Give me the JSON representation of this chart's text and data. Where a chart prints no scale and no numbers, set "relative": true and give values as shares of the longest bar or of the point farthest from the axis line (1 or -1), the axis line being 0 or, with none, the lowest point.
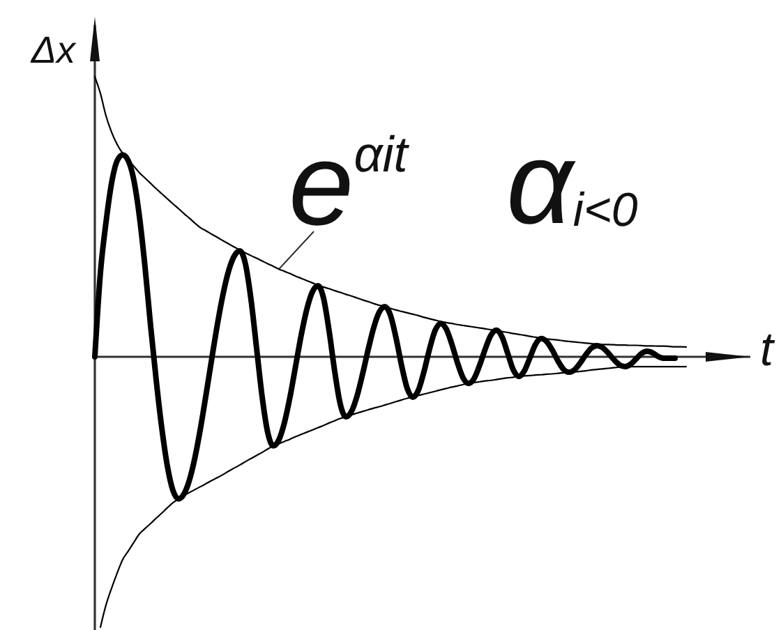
{
  "chart_data": {
    "type": "line",
    "relative": true,
    "xlabel": "t",
    "ylabel": "Δx",
    "annotations": [
      "e$^{αit}$",
      "α$_{i<0}$"
    ],
    "categories": [
      null,
      null,
      null,
      null,
      null,
      null,
      null,
      null,
      null,
      null,
      null,
      null,
      null,
      null,
      null,
      null,
      null,
      null,
      null,
      null,
      null,
      null,
      null,
      null,
      null,
      null,
      null,
      null,
      null,
      null,
      null,
      null,
      null,
      null,
      null,
      null,
      null,
      null,
      null,
      null,
      null,
      null,
      null,
      null,
      null,
      null,
      null,
      null,
      null,
      null,
      null,
      null,
      null,
      null,
      null,
      null,
      null,
      null,
      null,
      null,
      null,
      null,
      null,
      null,
      null,
      null,
      null,
      null,
      null,
      null,
      null,
      null,
      null,
      null,
      null,
      null,
      null,
      null,
      null,
      null,
      null,
      null,
      null,
      null,
      null,
      null,
      null,
      null,
      null,
      null,
      null,
      null,
      null,
      null,
      null,
      null,
      null,
      null,
      null,
      null,
      null,
      null,
      null,
      null,
      null,
      null,
      null
    ],
    "series": [
      {
        "color": "#000000",
        "values": [
          0,
          0.3,
          0.48,
          0.62,
          0.7,
          0.721,
          0.7,
          0.63,
          0.5,
          0.32,
          0.11,
          -0.083,
          -0.254,
          -0.39,
          -0.477,
          -0.507,
          -0.489,
          -0.437,
          -0.354,
          -0.248,
          -0.127,
          -0.002,
          0.119,
          0.225,
          0.308,
          0.36,
          0.378,
          0.331,
          0.204,
          0.03,
          -0.144,
          -0.271,
          -0.318,
          -0.296,
          -0.234,
          -0.142,
          -0.032,
          0.078,
          0.17,
          0.232,
          0.254,
          0.209,
          0.092,
          -0.052,
          -0.169,
          -0.214,
          -0.195,
          -0.14,
          -0.061,
          0.026,
          0.105,
          0.16,
          0.179,
          0.148,
          0.067,
          -0.032,
          -0.113,
          -0.144,
          -0.119,
          -0.053,
          0.028,
          0.094,
          0.119,
          0.099,
          0.045,
          -0.021,
          -0.075,
          -0.095,
          -0.077,
          -0.029,
          0.029,
          0.077,
          0.095,
          0.071,
          0.013,
          -0.046,
          -0.07,
          -0.05,
          -0.003,
          0.045,
          0.065,
          0.054,
          0.024,
          -0.014,
          -0.044,
          -0.055,
          -0.046,
          -0.022,
          0.007,
          0.031,
          0.04,
          0.033,
          0.014,
          -0.009,
          -0.028,
          -0.035,
          -0.027,
          -0.008,
          0.012,
          0.02,
          0.014,
          0.001,
          -0.005,
          -0.005,
          -0.005,
          null,
          null
        ]
      },
      {
        "color": "#000000",
        "values": [
          1.0,
          0.94,
          0.86,
          0.802,
          0.758,
          0.726,
          0.703,
          0.68,
          0.657,
          0.638,
          0.619,
          0.6,
          0.582,
          0.564,
          0.546,
          0.529,
          0.511,
          0.494,
          0.476,
          0.46,
          0.449,
          0.437,
          0.426,
          0.414,
          0.403,
          0.392,
          0.381,
          0.371,
          0.361,
          0.352,
          0.342,
          0.332,
          0.323,
          0.313,
          0.305,
          0.297,
          0.288,
          0.28,
          0.272,
          0.264,
          0.256,
          0.249,
          0.243,
          0.236,
          0.23,
          0.223,
          0.217,
          0.21,
          0.203,
          0.197,
          0.19,
          0.184,
          0.18,
          0.173,
          0.167,
          0.162,
          0.157,
          0.152,
          0.147,
          0.141,
          0.136,
          0.131,
          0.126,
          0.122,
          0.119,
          0.115,
          0.112,
          0.109,
          0.106,
          0.103,
          0.1,
          0.097,
          0.095,
          0.09,
          0.087,
          0.083,
          0.08,
          0.077,
          0.073,
          0.07,
          0.067,
          0.064,
          0.062,
          0.06,
          0.057,
          0.055,
          0.053,
          0.051,
          0.049,
          0.047,
          0.045,
          0.044,
          0.044,
          0.043,
          0.042,
          0.042,
          0.041,
          0.041,
          0.04,
          0.039,
          0.039,
          0.038,
          0.038,
          0.037,
          0.036,
          0.036,
          0.035
        ]
      },
      {
        "color": "#000000",
        "values": [
          null,
          -0.965,
          -0.886,
          -0.826,
          -0.772,
          -0.723,
          -0.693,
          -0.662,
          -0.632,
          -0.613,
          -0.595,
          -0.576,
          -0.558,
          -0.539,
          -0.521,
          -0.508,
          -0.494,
          -0.484,
          -0.473,
          -0.463,
          -0.452,
          -0.441,
          -0.431,
          -0.42,
          -0.408,
          -0.397,
          -0.386,
          -0.374,
          -0.363,
          -0.352,
          -0.341,
          -0.329,
          -0.318,
          -0.31,
          -0.302,
          -0.294,
          -0.285,
          -0.277,
          -0.269,
          -0.261,
          -0.253,
          -0.245,
          -0.236,
          -0.228,
          -0.22,
          -0.214,
          -0.207,
          -0.201,
          -0.195,
          -0.189,
          -0.183,
          -0.178,
          -0.172,
          -0.166,
          -0.16,
          -0.154,
          -0.148,
          -0.144,
          -0.138,
          -0.133,
          -0.128,
          -0.123,
          -0.118,
          -0.113,
          -0.108,
          -0.104,
          -0.099,
          -0.095,
          -0.092,
          -0.089,
          -0.086,
          -0.084,
          -0.081,
          -0.078,
          -0.075,
          -0.073,
          -0.07,
          -0.068,
          -0.067,
          -0.065,
          -0.064,
          -0.062,
          -0.061,
          -0.059,
          -0.057,
          -0.056,
          -0.054,
          -0.052,
          -0.05,
          -0.047,
          -0.045,
          -0.043,
          -0.041,
          -0.039,
          -0.037,
          -0.035,
          -0.035,
          -0.035,
          -0.035,
          -0.035,
          -0.035,
          -0.035,
          -0.035,
          -0.035,
          -0.035,
          -0.035,
          -0.035
        ]
      }
    ]
  }
}
